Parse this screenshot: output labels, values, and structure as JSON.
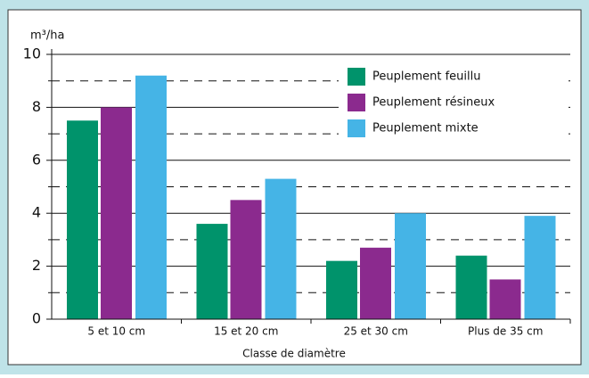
{
  "chart_data": {
    "type": "bar",
    "y_label": "m³/ha",
    "x_label": "Classe de diamètre",
    "categories": [
      "5 et 10 cm",
      "15 et 20 cm",
      "25 et 30 cm",
      "Plus de 35 cm"
    ],
    "series": [
      {
        "name": "Peuplement feuillu",
        "color": "#00936b",
        "values": [
          7.5,
          3.6,
          2.2,
          2.4
        ]
      },
      {
        "name": "Peuplement résineux",
        "color": "#8b2a8e",
        "values": [
          8.0,
          4.5,
          2.7,
          1.5
        ]
      },
      {
        "name": "Peuplement mixte",
        "color": "#45b4e6",
        "values": [
          9.2,
          5.3,
          4.0,
          3.9
        ]
      }
    ],
    "ylim": [
      0,
      10
    ],
    "yticks": [
      0,
      2,
      4,
      6,
      8,
      10
    ],
    "minor_yticks": [
      1,
      3,
      5,
      7,
      9
    ],
    "grid": true,
    "legend": "upper right"
  }
}
